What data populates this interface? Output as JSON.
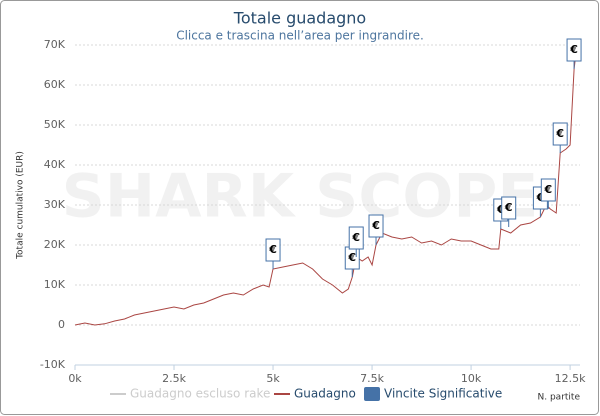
{
  "chart_data": {
    "type": "line",
    "title": "Totale guadagno",
    "subtitle": "Clicca e trascina nell’area per ingrandire.",
    "watermark": "SHARK SCOPE",
    "y_label": "Totale cumulativo (EUR)",
    "x_label": "N. partite",
    "xlim": [
      0,
      12750
    ],
    "ylim": [
      -10000,
      70000
    ],
    "xticks": [
      {
        "value": 0,
        "label": "0k"
      },
      {
        "value": 2500,
        "label": "2.5k"
      },
      {
        "value": 5000,
        "label": "5k"
      },
      {
        "value": 7500,
        "label": "7.5k"
      },
      {
        "value": 10000,
        "label": "10k"
      },
      {
        "value": 12500,
        "label": "12.5k"
      }
    ],
    "yticks": [
      {
        "value": -10000,
        "label": "-10K"
      },
      0,
      {
        "value": 10000,
        "label": "10K"
      },
      {
        "value": 20000,
        "label": "20K"
      },
      {
        "value": 30000,
        "label": "30K"
      },
      {
        "value": 40000,
        "label": "40K"
      },
      {
        "value": 50000,
        "label": "50K"
      },
      {
        "value": 60000,
        "label": "60K"
      },
      {
        "value": 70000,
        "label": "70K"
      }
    ],
    "grid": true,
    "hidden_series": {
      "name": "Guadagno escluso rake",
      "color": "#cccccc"
    },
    "x": [
      0,
      250,
      500,
      750,
      1000,
      1250,
      1500,
      1750,
      2000,
      2250,
      2500,
      2750,
      3000,
      3250,
      3500,
      3750,
      4000,
      4250,
      4500,
      4750,
      4900,
      5000,
      5250,
      5500,
      5750,
      6000,
      6250,
      6500,
      6750,
      6900,
      7000,
      7100,
      7250,
      7400,
      7500,
      7600,
      7750,
      8000,
      8250,
      8500,
      8750,
      9000,
      9250,
      9500,
      9750,
      10000,
      10250,
      10500,
      10700,
      10750,
      11000,
      11250,
      11500,
      11750,
      11900,
      12000,
      12150,
      12250,
      12400,
      12500,
      12600,
      12650
    ],
    "series": [
      {
        "name": "Guadagno",
        "color": "#aa4643",
        "values": [
          0,
          500,
          0,
          300,
          1000,
          1500,
          2500,
          3000,
          3500,
          4000,
          4500,
          4000,
          5000,
          5500,
          6500,
          7500,
          8000,
          7500,
          9000,
          10000,
          9500,
          14000,
          14500,
          15000,
          15500,
          14000,
          11500,
          10000,
          8000,
          9000,
          12000,
          17000,
          16000,
          17000,
          15000,
          20000,
          23000,
          22000,
          21500,
          22000,
          20500,
          21000,
          20000,
          21500,
          21000,
          21000,
          20000,
          19000,
          19000,
          24000,
          23000,
          25000,
          25500,
          27000,
          30000,
          29000,
          28000,
          43000,
          44000,
          45000,
          64000,
          68000
        ]
      }
    ],
    "flags_name": "Vincite Significative",
    "flags_color": "#4572a7",
    "flags": [
      {
        "x": 5000,
        "y": 14000,
        "text": "€"
      },
      {
        "x": 7000,
        "y": 12000,
        "text": "€"
      },
      {
        "x": 7100,
        "y": 17000,
        "text": "€"
      },
      {
        "x": 7600,
        "y": 20000,
        "text": "€"
      },
      {
        "x": 10750,
        "y": 24000,
        "text": "€"
      },
      {
        "x": 10950,
        "y": 24500,
        "text": "€"
      },
      {
        "x": 11750,
        "y": 27000,
        "text": "€"
      },
      {
        "x": 11950,
        "y": 29000,
        "text": "€"
      },
      {
        "x": 12250,
        "y": 43000,
        "text": "€"
      },
      {
        "x": 12600,
        "y": 64000,
        "text": "€"
      }
    ]
  }
}
